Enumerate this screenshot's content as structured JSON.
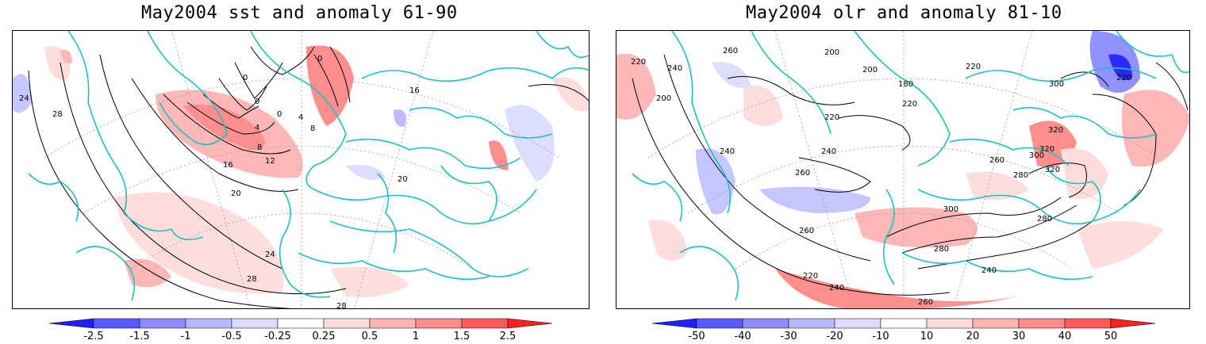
{
  "left_panel": {
    "title": "May2004 sst and anomaly 61-90",
    "contour_labels": [
      "0",
      "0",
      "0",
      "0",
      "4",
      "4",
      "8",
      "8",
      "12",
      "16",
      "16",
      "20",
      "20",
      "24",
      "24",
      "28",
      "28",
      "28"
    ],
    "colorbar": {
      "ticks": [
        "-2.5",
        "-1.5",
        "-1",
        "-0.5",
        "-0.25",
        "0.25",
        "0.5",
        "1",
        "1.5",
        "2.5"
      ],
      "colors": [
        "#2020ff",
        "#5a5aff",
        "#8c8cff",
        "#b9b9ff",
        "#dcdcff",
        "#ffffff",
        "#ffdcdc",
        "#ffb4b4",
        "#ff8a8a",
        "#ff5a5a",
        "#ff2020"
      ]
    }
  },
  "right_panel": {
    "title": "May2004 olr and anomaly 81-10",
    "contour_labels": [
      "180",
      "200",
      "200",
      "200",
      "220",
      "220",
      "220",
      "220",
      "220",
      "220",
      "240",
      "240",
      "240",
      "240",
      "240",
      "260",
      "260",
      "260",
      "260",
      "260",
      "280",
      "280",
      "280",
      "300",
      "300",
      "300",
      "320",
      "320",
      "320"
    ],
    "colorbar": {
      "ticks": [
        "-50",
        "-40",
        "-30",
        "-20",
        "-10",
        "10",
        "20",
        "30",
        "40",
        "50"
      ],
      "colors": [
        "#2020ff",
        "#5a5aff",
        "#8c8cff",
        "#b9b9ff",
        "#dcdcff",
        "#ffffff",
        "#ffdcdc",
        "#ffb4b4",
        "#ff8a8a",
        "#ff5a5a",
        "#ff2020"
      ]
    }
  },
  "colors": {
    "coastline": "#20c0c0",
    "contour": "#000000",
    "grid": "#999999",
    "positive_anomaly": "#ffb4b4",
    "negative_anomaly": "#c4c4ff"
  }
}
